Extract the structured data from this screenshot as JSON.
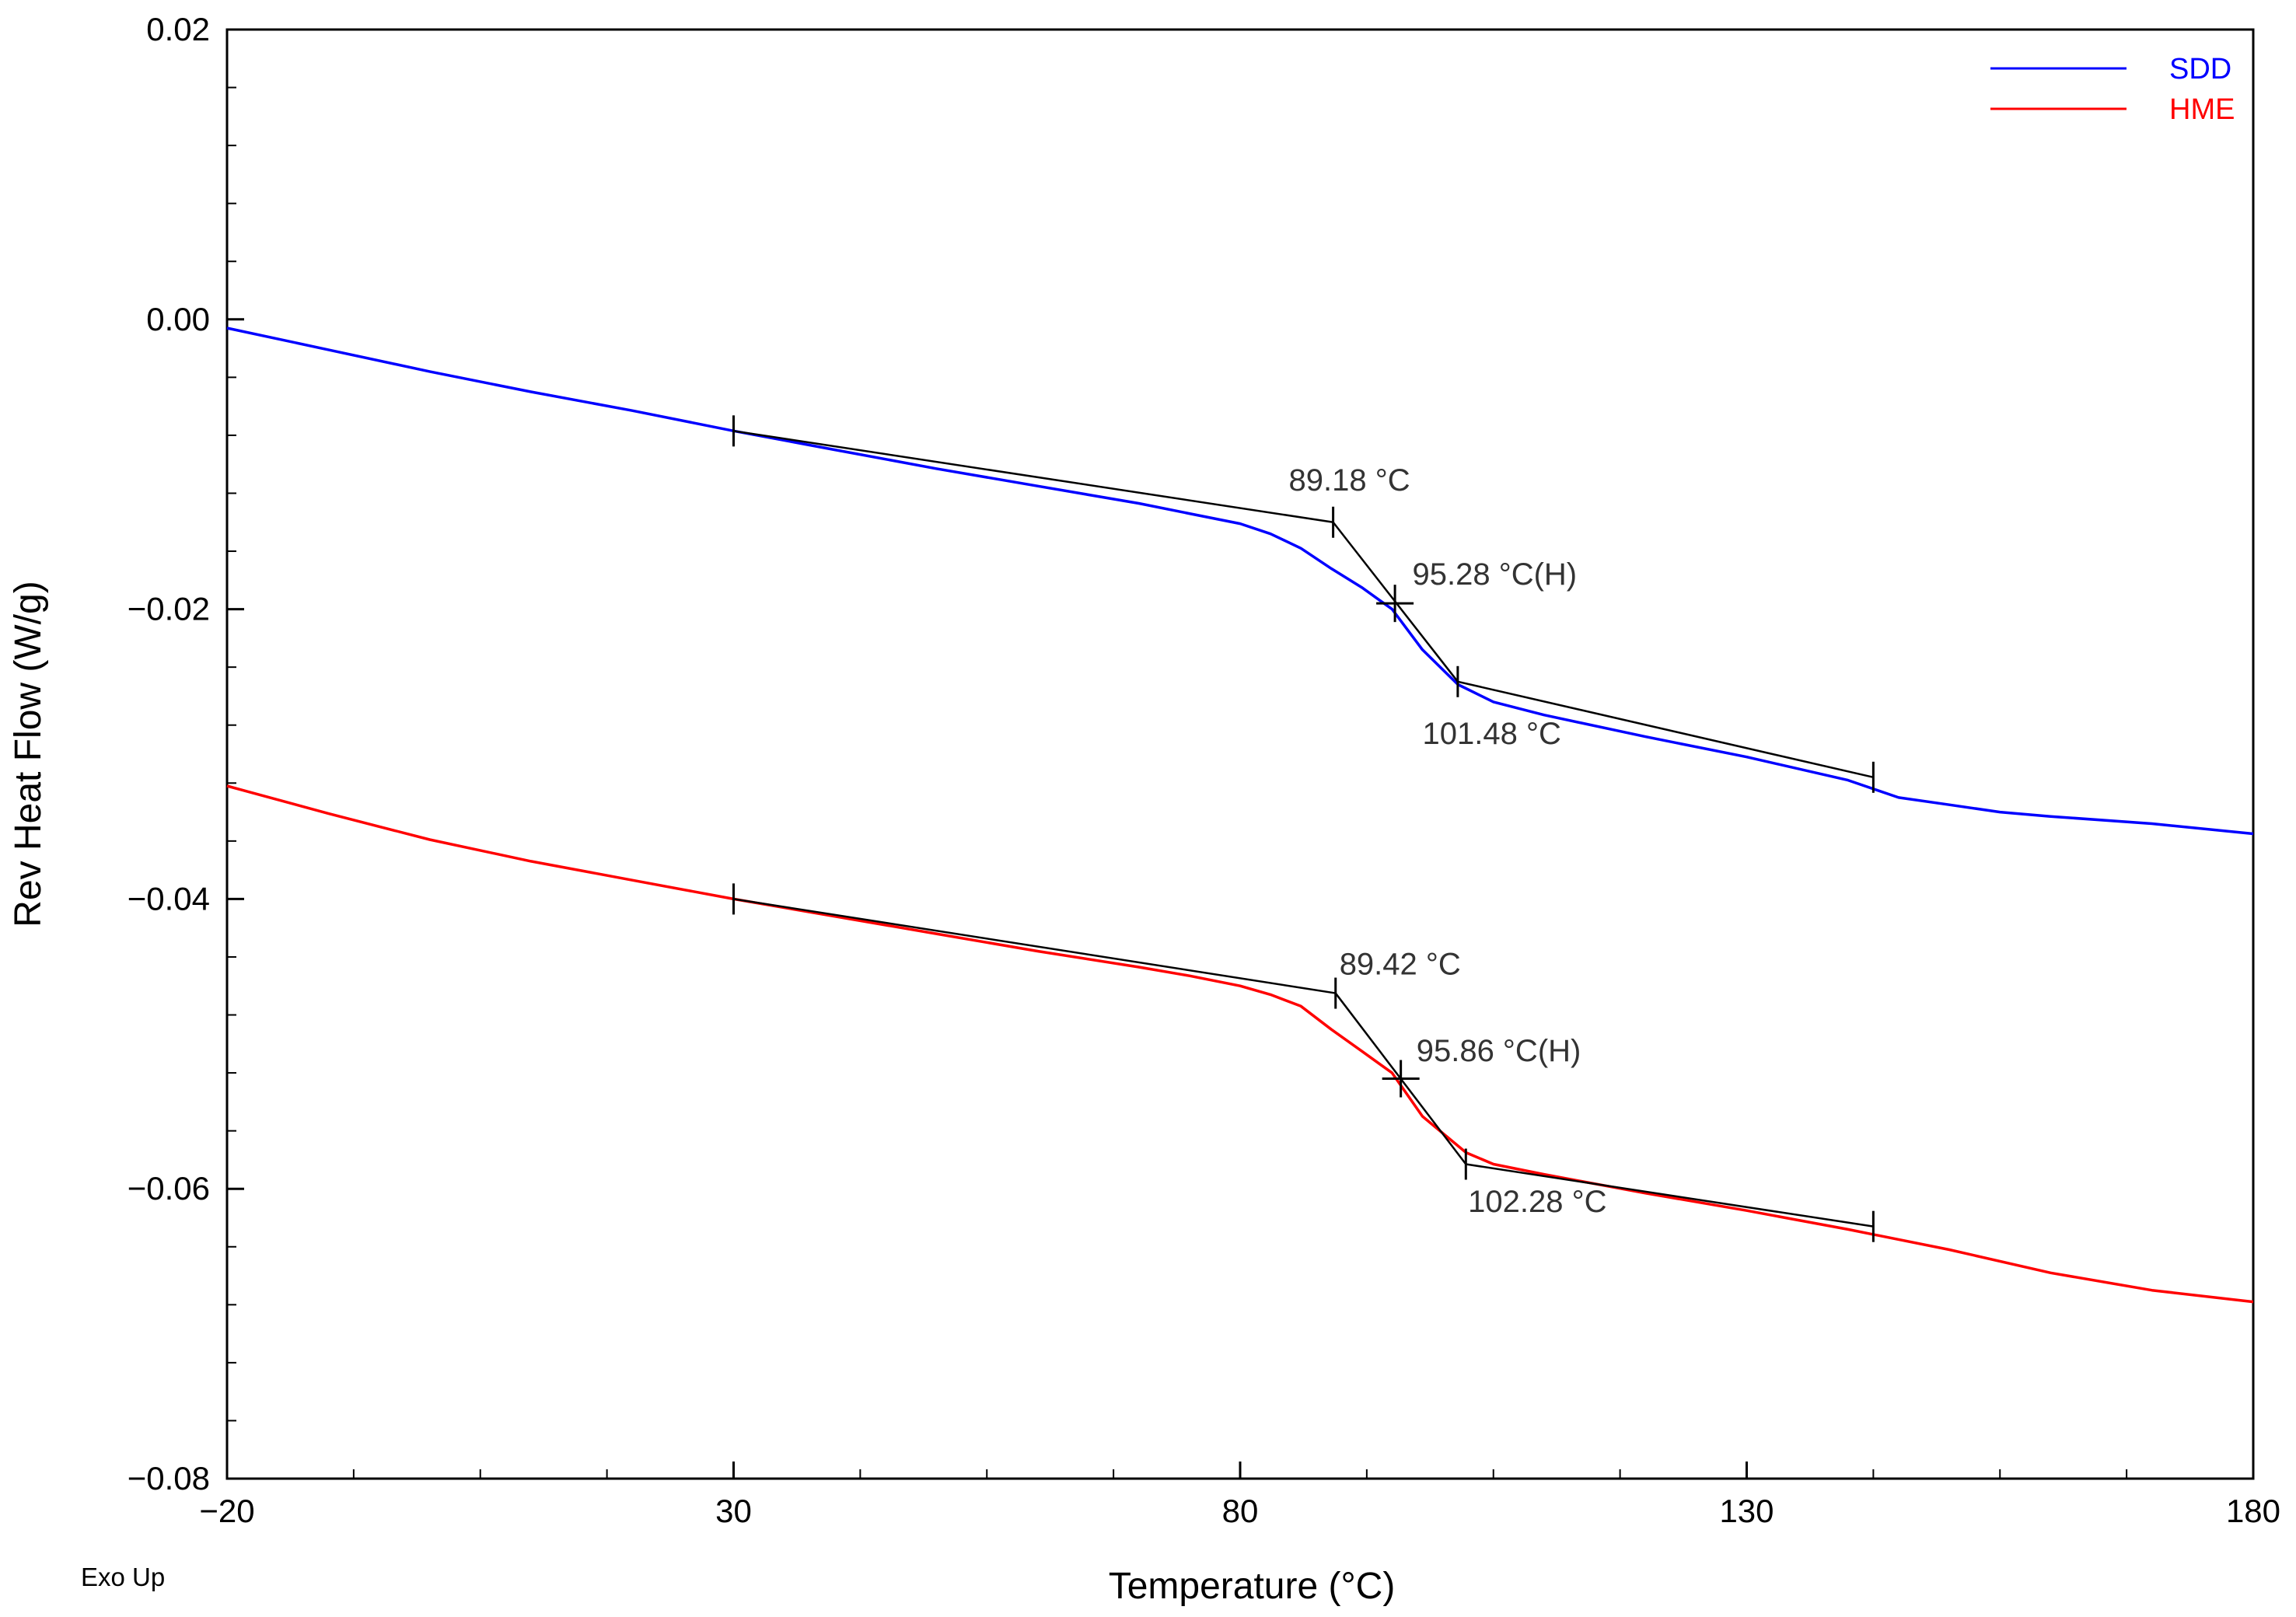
{
  "chart_data": {
    "type": "line",
    "title": "",
    "xlabel": "Temperature (°C)",
    "ylabel": "Rev Heat Flow (W/g)",
    "corner_note": "Exo Up",
    "xlim": [
      -20,
      180
    ],
    "ylim": [
      -0.08,
      0.02
    ],
    "x_ticks": [
      -20,
      30,
      80,
      130,
      180
    ],
    "x_tick_labels": [
      "−20",
      "30",
      "80",
      "130",
      "180"
    ],
    "y_ticks": [
      0.02,
      0.0,
      -0.02,
      -0.04,
      -0.06,
      -0.08
    ],
    "y_tick_labels": [
      "0.02",
      "0.00",
      "−0.02",
      "−0.04",
      "−0.06",
      "−0.08"
    ],
    "legend_position": "top-right",
    "series": [
      {
        "name": "SDD",
        "color": "#0000ff",
        "x": [
          -20,
          -10,
          0,
          10,
          20,
          30,
          40,
          50,
          60,
          70,
          75,
          80,
          83,
          86,
          89,
          92,
          95,
          98,
          101.5,
          105,
          110,
          120,
          130,
          140,
          145,
          150,
          155,
          160,
          170,
          180
        ],
        "y": [
          -0.0006,
          -0.0021,
          -0.0036,
          -0.005,
          -0.0063,
          -0.0077,
          -0.009,
          -0.0103,
          -0.0115,
          -0.0127,
          -0.0134,
          -0.0141,
          -0.0148,
          -0.0158,
          -0.0172,
          -0.0185,
          -0.02,
          -0.0228,
          -0.0252,
          -0.0264,
          -0.0273,
          -0.0288,
          -0.0302,
          -0.0318,
          -0.033,
          -0.0335,
          -0.034,
          -0.0343,
          -0.0348,
          -0.0355
        ]
      },
      {
        "name": "HME",
        "color": "#ff0000",
        "x": [
          -20,
          -10,
          0,
          10,
          20,
          30,
          40,
          50,
          60,
          70,
          75,
          80,
          83,
          86,
          89,
          92,
          95,
          98,
          102.3,
          105,
          110,
          120,
          130,
          140,
          150,
          160,
          170,
          180
        ],
        "y": [
          -0.0322,
          -0.0341,
          -0.0359,
          -0.0374,
          -0.0387,
          -0.04,
          -0.0412,
          -0.0424,
          -0.0436,
          -0.0447,
          -0.0453,
          -0.046,
          -0.0466,
          -0.0474,
          -0.049,
          -0.0505,
          -0.052,
          -0.055,
          -0.0575,
          -0.0583,
          -0.059,
          -0.0603,
          -0.0615,
          -0.0628,
          -0.0642,
          -0.0658,
          -0.067,
          -0.0678
        ]
      }
    ],
    "analysis": [
      {
        "series": "SDD",
        "tangents": [
          {
            "x": [
              30,
              89.18
            ],
            "y": [
              -0.0077,
              -0.014
            ]
          },
          {
            "x": [
              89.18,
              101.48
            ],
            "y": [
              -0.014,
              -0.025
            ]
          },
          {
            "x": [
              101.48,
              142.5
            ],
            "y": [
              -0.025,
              -0.0316
            ]
          }
        ],
        "markers": [
          {
            "x": 30,
            "y": -0.0077,
            "kind": "tick"
          },
          {
            "x": 89.18,
            "y": -0.014,
            "kind": "tick"
          },
          {
            "x": 95.28,
            "y": -0.0196,
            "kind": "cross"
          },
          {
            "x": 101.48,
            "y": -0.025,
            "kind": "tick"
          },
          {
            "x": 142.5,
            "y": -0.0316,
            "kind": "tick"
          }
        ],
        "labels": [
          {
            "text": "89.18 °C",
            "x": 84.8,
            "y": -0.0118
          },
          {
            "text": "95.28 °C(H)",
            "x": 97.0,
            "y": -0.0183
          },
          {
            "text": "101.48 °C",
            "x": 98.0,
            "y": -0.0293
          }
        ]
      },
      {
        "series": "HME",
        "tangents": [
          {
            "x": [
              30,
              89.42
            ],
            "y": [
              -0.04,
              -0.0465
            ]
          },
          {
            "x": [
              89.42,
              102.28
            ],
            "y": [
              -0.0465,
              -0.0583
            ]
          },
          {
            "x": [
              102.28,
              142.5
            ],
            "y": [
              -0.0583,
              -0.0626
            ]
          }
        ],
        "markers": [
          {
            "x": 30,
            "y": -0.04,
            "kind": "tick"
          },
          {
            "x": 89.42,
            "y": -0.0465,
            "kind": "tick"
          },
          {
            "x": 95.86,
            "y": -0.0524,
            "kind": "cross"
          },
          {
            "x": 102.28,
            "y": -0.0583,
            "kind": "tick"
          },
          {
            "x": 142.5,
            "y": -0.0626,
            "kind": "tick"
          }
        ],
        "labels": [
          {
            "text": "89.42 °C",
            "x": 89.8,
            "y": -0.0452
          },
          {
            "text": "95.86 °C(H)",
            "x": 97.4,
            "y": -0.0512
          },
          {
            "text": "102.28 °C",
            "x": 102.5,
            "y": -0.0616
          }
        ]
      }
    ]
  }
}
